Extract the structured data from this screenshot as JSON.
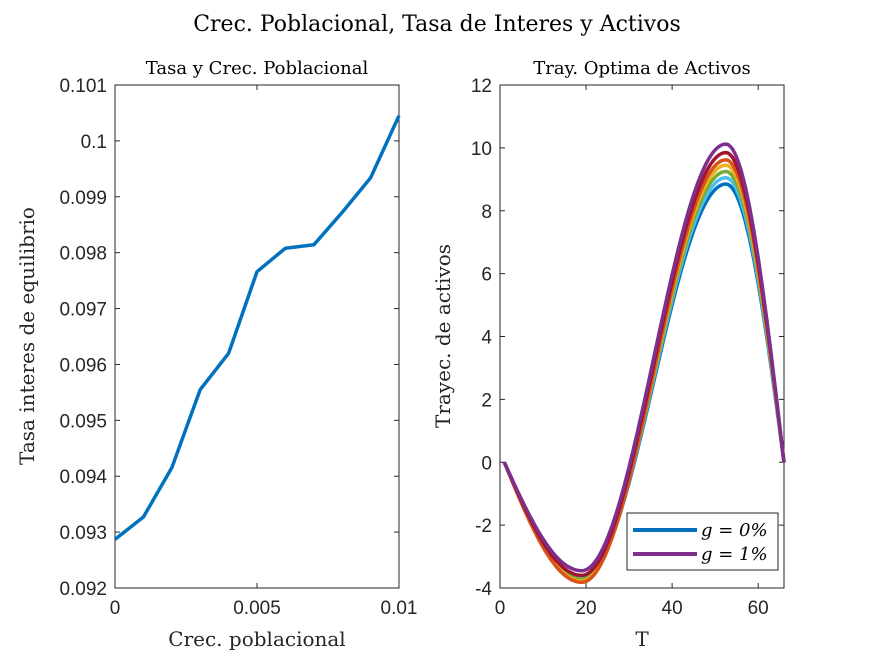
{
  "figure_title": "Crec. Poblacional, Tasa de Interes y Activos",
  "colors": {
    "blue": "#0072BD",
    "purple": "#7E2F8E",
    "mid_series": [
      "#0072BD",
      "#4DBEEE",
      "#77AC30",
      "#EDB120",
      "#D95319",
      "#A2142F",
      "#7E2F8E"
    ]
  },
  "chart_data": [
    {
      "type": "line",
      "title": "Tasa y Crec. Poblacional",
      "xlabel": "Crec. poblacional",
      "ylabel": "Tasa interes de equilibrio",
      "xlim": [
        0,
        0.01
      ],
      "ylim": [
        0.092,
        0.101
      ],
      "xticks": [
        0,
        0.005,
        0.01
      ],
      "xtick_labels": [
        "0",
        "0.005",
        "0.01"
      ],
      "yticks": [
        0.092,
        0.093,
        0.094,
        0.095,
        0.096,
        0.097,
        0.098,
        0.099,
        0.1,
        0.101
      ],
      "ytick_labels": [
        "0.092",
        "0.093",
        "0.094",
        "0.095",
        "0.096",
        "0.097",
        "0.098",
        "0.099",
        "0.1",
        "0.101"
      ],
      "grid": false,
      "series": [
        {
          "color": "#0072BD",
          "x": [
            0,
            0.001,
            0.002,
            0.003,
            0.004,
            0.005,
            0.006,
            0.007,
            0.008,
            0.009,
            0.01
          ],
          "y": [
            0.09287,
            0.09327,
            0.09415,
            0.09555,
            0.0962,
            0.09766,
            0.09808,
            0.09814,
            0.09872,
            0.09934,
            0.10045
          ]
        }
      ]
    },
    {
      "type": "line",
      "title": "Tray. Optima de Activos",
      "xlabel": "T",
      "ylabel": "Trayec. de activos",
      "xlim": [
        0,
        66
      ],
      "ylim": [
        -4,
        12
      ],
      "xticks": [
        0,
        20,
        40,
        60
      ],
      "xtick_labels": [
        "0",
        "20",
        "40",
        "60"
      ],
      "yticks": [
        -4,
        -2,
        0,
        2,
        4,
        6,
        8,
        10,
        12
      ],
      "ytick_labels": [
        "-4",
        "-2",
        "0",
        "2",
        "4",
        "6",
        "8",
        "10",
        "12"
      ],
      "grid": false,
      "legend": {
        "location": "bottom-right",
        "entries": [
          {
            "label": "g = 0%",
            "color": "#0072BD"
          },
          {
            "label": "g = 1%",
            "color": "#7E2F8E"
          }
        ]
      },
      "curve_shape": {
        "x_start": 1,
        "x_end": 66,
        "x_min": 19,
        "x_max": 52.5
      },
      "series": [
        {
          "color": "#0072BD",
          "min": -3.7,
          "max": 8.85
        },
        {
          "color": "#4DBEEE",
          "min": -3.68,
          "max": 9.05
        },
        {
          "color": "#77AC30",
          "min": -3.72,
          "max": 9.25
        },
        {
          "color": "#EDB120",
          "min": -3.78,
          "max": 9.45
        },
        {
          "color": "#D95319",
          "min": -3.82,
          "max": 9.62
        },
        {
          "color": "#A2142F",
          "min": -3.6,
          "max": 9.85
        },
        {
          "color": "#7E2F8E",
          "min": -3.45,
          "max": 10.12
        }
      ]
    }
  ]
}
